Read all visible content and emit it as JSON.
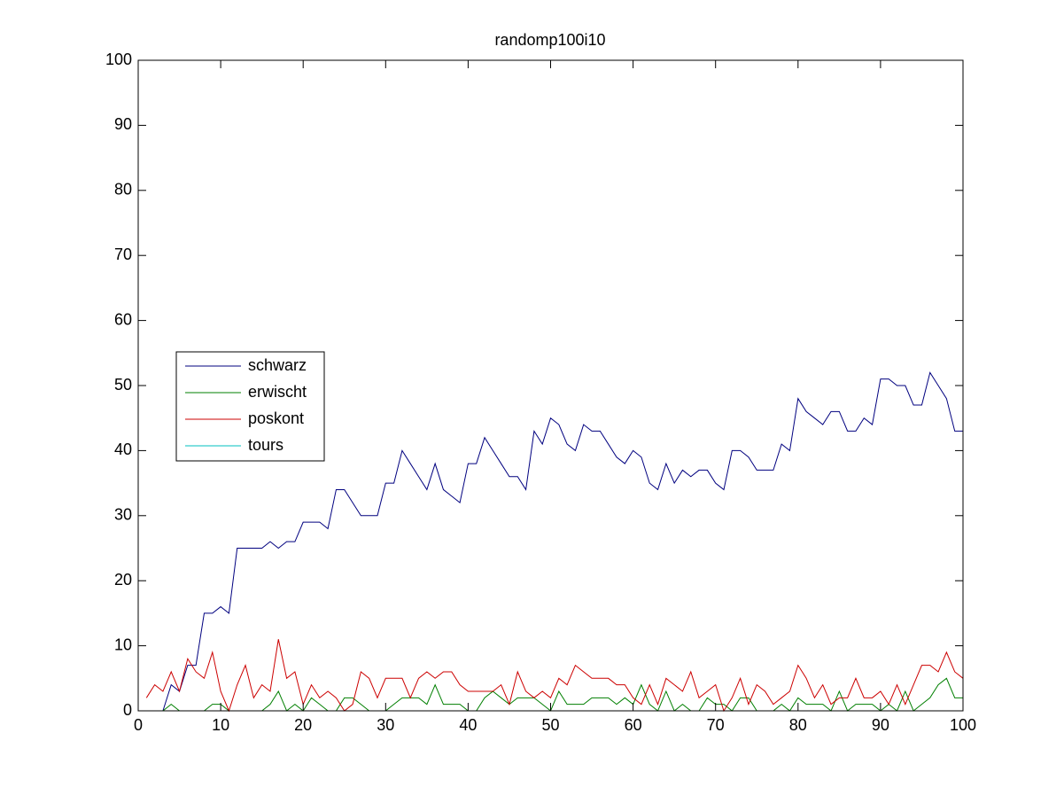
{
  "chart_data": {
    "type": "line",
    "title": "randomp100i10",
    "x": [
      1,
      2,
      3,
      4,
      5,
      6,
      7,
      8,
      9,
      10,
      11,
      12,
      13,
      14,
      15,
      16,
      17,
      18,
      19,
      20,
      21,
      22,
      23,
      24,
      25,
      26,
      27,
      28,
      29,
      30,
      31,
      32,
      33,
      34,
      35,
      36,
      37,
      38,
      39,
      40,
      41,
      42,
      43,
      44,
      45,
      46,
      47,
      48,
      49,
      50,
      51,
      52,
      53,
      54,
      55,
      56,
      57,
      58,
      59,
      60,
      61,
      62,
      63,
      64,
      65,
      66,
      67,
      68,
      69,
      70,
      71,
      72,
      73,
      74,
      75,
      76,
      77,
      78,
      79,
      80,
      81,
      82,
      83,
      84,
      85,
      86,
      87,
      88,
      89,
      90,
      91,
      92,
      93,
      94,
      95,
      96,
      97,
      98,
      99,
      100
    ],
    "series": [
      {
        "name": "schwarz",
        "color": "#00007f",
        "values": [
          0,
          0,
          0,
          4,
          3,
          7,
          7,
          15,
          15,
          16,
          15,
          25,
          25,
          25,
          25,
          26,
          25,
          26,
          26,
          29,
          29,
          29,
          28,
          34,
          34,
          32,
          30,
          30,
          30,
          35,
          35,
          40,
          38,
          36,
          34,
          38,
          34,
          33,
          32,
          38,
          38,
          42,
          40,
          38,
          36,
          36,
          34,
          43,
          41,
          45,
          44,
          41,
          40,
          44,
          43,
          43,
          41,
          39,
          38,
          40,
          39,
          35,
          34,
          38,
          35,
          37,
          36,
          37,
          37,
          35,
          34,
          40,
          40,
          39,
          37,
          37,
          37,
          41,
          40,
          48,
          46,
          45,
          44,
          46,
          46,
          43,
          43,
          45,
          44,
          51,
          51,
          50,
          50,
          47,
          47,
          52,
          50,
          48,
          43,
          43
        ]
      },
      {
        "name": "erwischt",
        "color": "#007f00",
        "values": [
          0,
          0,
          0,
          1,
          0,
          0,
          0,
          0,
          1,
          1,
          0,
          0,
          0,
          0,
          0,
          1,
          3,
          0,
          1,
          0,
          2,
          1,
          0,
          0,
          2,
          2,
          1,
          0,
          0,
          0,
          1,
          2,
          2,
          2,
          1,
          4,
          1,
          1,
          1,
          0,
          0,
          2,
          3,
          2,
          1,
          2,
          2,
          2,
          1,
          0,
          3,
          1,
          1,
          1,
          2,
          2,
          2,
          1,
          2,
          1,
          4,
          1,
          0,
          3,
          0,
          1,
          0,
          0,
          2,
          1,
          1,
          0,
          2,
          2,
          0,
          0,
          0,
          1,
          0,
          2,
          1,
          1,
          1,
          0,
          3,
          0,
          1,
          1,
          1,
          0,
          1,
          0,
          3,
          0,
          1,
          2,
          4,
          5,
          2,
          2
        ]
      },
      {
        "name": "poskont",
        "color": "#cc0000",
        "values": [
          2,
          4,
          3,
          6,
          3,
          8,
          6,
          5,
          9,
          3,
          0,
          4,
          7,
          2,
          4,
          3,
          11,
          5,
          6,
          1,
          4,
          2,
          3,
          2,
          0,
          1,
          6,
          5,
          2,
          5,
          5,
          5,
          2,
          5,
          6,
          5,
          6,
          6,
          4,
          3,
          3,
          3,
          3,
          4,
          1,
          6,
          3,
          2,
          3,
          2,
          5,
          4,
          7,
          6,
          5,
          5,
          5,
          4,
          4,
          2,
          1,
          4,
          1,
          5,
          4,
          3,
          6,
          2,
          3,
          4,
          0,
          2,
          5,
          1,
          4,
          3,
          1,
          2,
          3,
          7,
          5,
          2,
          4,
          1,
          2,
          2,
          5,
          2,
          2,
          3,
          1,
          4,
          1,
          4,
          7,
          7,
          6,
          9,
          6,
          5
        ]
      },
      {
        "name": "tours",
        "color": "#00bfbf",
        "values": [
          0,
          0,
          0,
          0,
          0,
          0,
          0,
          0,
          0,
          0,
          0,
          0,
          0,
          0,
          0,
          0,
          0,
          0,
          0,
          0,
          0,
          0,
          0,
          0,
          0,
          0,
          0,
          0,
          0,
          0,
          0,
          0,
          0,
          0,
          0,
          0,
          0,
          0,
          0,
          0,
          0,
          0,
          0,
          0,
          0,
          0,
          0,
          0,
          0,
          0,
          0,
          0,
          0,
          0,
          0,
          0,
          0,
          0,
          0,
          0,
          0,
          0,
          0,
          0,
          0,
          0,
          0,
          0,
          0,
          0,
          0,
          0,
          0,
          0,
          0,
          0,
          0,
          0,
          0,
          0,
          0,
          0,
          0,
          0,
          0,
          0,
          0,
          0,
          0,
          0,
          0,
          0,
          0,
          0,
          0,
          0,
          0,
          0,
          0,
          0
        ]
      }
    ],
    "xlim": [
      0,
      100
    ],
    "xticks": [
      0,
      10,
      20,
      30,
      40,
      50,
      60,
      70,
      80,
      90,
      100
    ],
    "ylim": [
      0,
      100
    ],
    "yticks": [
      0,
      10,
      20,
      30,
      40,
      50,
      60,
      70,
      80,
      90,
      100
    ],
    "legend": "west"
  }
}
